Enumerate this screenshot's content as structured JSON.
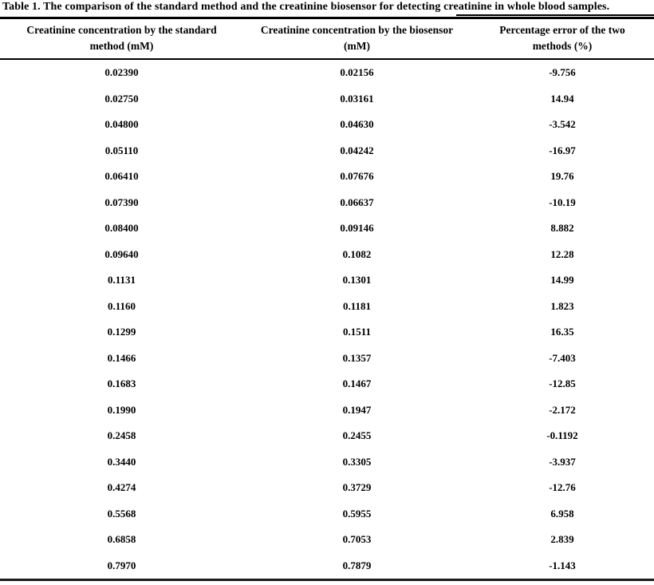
{
  "colors": {
    "text": "#000000",
    "rule": "#000000",
    "background": "#ffffff"
  },
  "table": {
    "title": "Table 1. The comparison of the standard method and the creatinine biosensor for detecting creatinine in whole blood samples.",
    "headers": [
      "Creatinine concentration by the standard method (mM)",
      "Creatinine concentration by the biosensor (mM)",
      "Percentage error of the two methods (%)"
    ],
    "rows": [
      [
        "0.02390",
        "0.02156",
        "-9.756"
      ],
      [
        "0.02750",
        "0.03161",
        "14.94"
      ],
      [
        "0.04800",
        "0.04630",
        "-3.542"
      ],
      [
        "0.05110",
        "0.04242",
        "-16.97"
      ],
      [
        "0.06410",
        "0.07676",
        "19.76"
      ],
      [
        "0.07390",
        "0.06637",
        "-10.19"
      ],
      [
        "0.08400",
        "0.09146",
        "8.882"
      ],
      [
        "0.09640",
        "0.1082",
        "12.28"
      ],
      [
        "0.1131",
        "0.1301",
        "14.99"
      ],
      [
        "0.1160",
        "0.1181",
        "1.823"
      ],
      [
        "0.1299",
        "0.1511",
        "16.35"
      ],
      [
        "0.1466",
        "0.1357",
        "-7.403"
      ],
      [
        "0.1683",
        "0.1467",
        "-12.85"
      ],
      [
        "0.1990",
        "0.1947",
        "-2.172"
      ],
      [
        "0.2458",
        "0.2455",
        "-0.1192"
      ],
      [
        "0.3440",
        "0.3305",
        "-3.937"
      ],
      [
        "0.4274",
        "0.3729",
        "-12.76"
      ],
      [
        "0.5568",
        "0.5955",
        "6.958"
      ],
      [
        "0.6858",
        "0.7053",
        "2.839"
      ],
      [
        "0.7970",
        "0.7879",
        "-1.143"
      ]
    ]
  },
  "chart_data": {
    "type": "table",
    "title": "Table 1. The comparison of the standard method and the creatinine biosensor for detecting creatinine in whole blood samples.",
    "columns": [
      "Creatinine concentration by the standard method (mM)",
      "Creatinine concentration by the biosensor (mM)",
      "Percentage error of the two methods (%)"
    ],
    "rows": [
      [
        0.0239,
        0.02156,
        -9.756
      ],
      [
        0.0275,
        0.03161,
        14.94
      ],
      [
        0.048,
        0.0463,
        -3.542
      ],
      [
        0.0511,
        0.04242,
        -16.97
      ],
      [
        0.0641,
        0.07676,
        19.76
      ],
      [
        0.0739,
        0.06637,
        -10.19
      ],
      [
        0.084,
        0.09146,
        8.882
      ],
      [
        0.0964,
        0.1082,
        12.28
      ],
      [
        0.1131,
        0.1301,
        14.99
      ],
      [
        0.116,
        0.1181,
        1.823
      ],
      [
        0.1299,
        0.1511,
        16.35
      ],
      [
        0.1466,
        0.1357,
        -7.403
      ],
      [
        0.1683,
        0.1467,
        -12.85
      ],
      [
        0.199,
        0.1947,
        -2.172
      ],
      [
        0.2458,
        0.2455,
        -0.1192
      ],
      [
        0.344,
        0.3305,
        -3.937
      ],
      [
        0.4274,
        0.3729,
        -12.76
      ],
      [
        0.5568,
        0.5955,
        6.958
      ],
      [
        0.6858,
        0.7053,
        2.839
      ],
      [
        0.797,
        0.7879,
        -1.143
      ]
    ]
  }
}
